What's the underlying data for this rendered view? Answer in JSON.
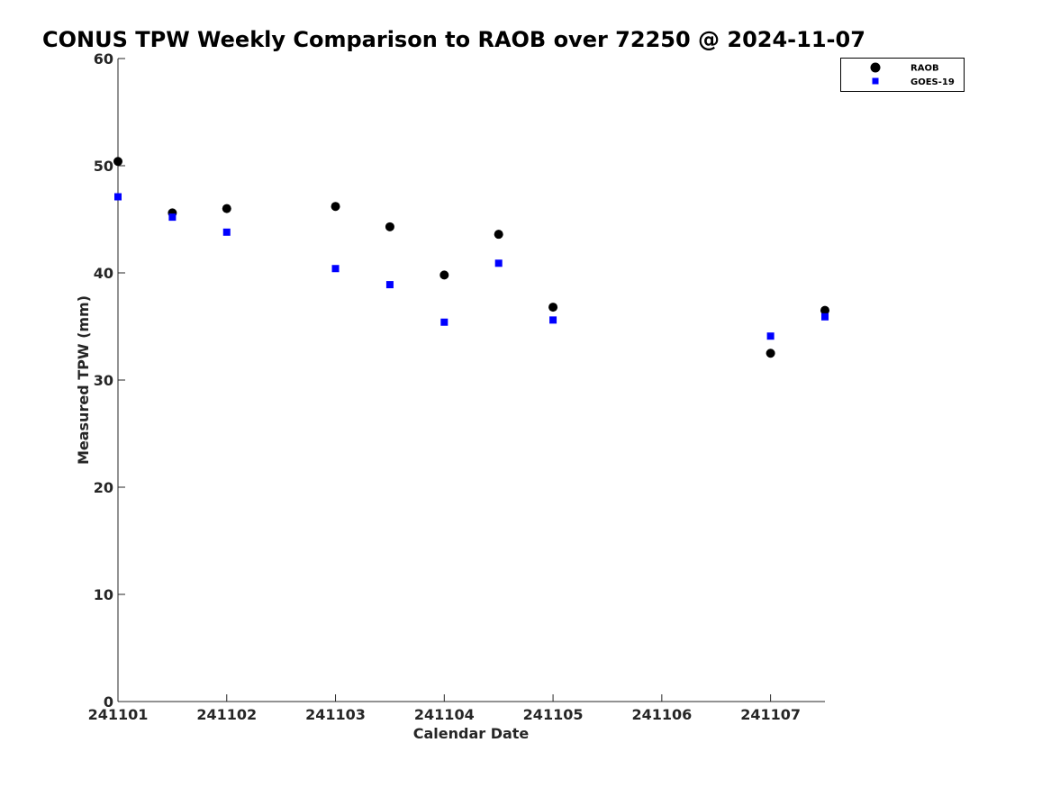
{
  "chart_data": {
    "type": "scatter",
    "title": "CONUS TPW Weekly Comparison to RAOB over 72250 @ 2024-11-07",
    "xlabel": "Calendar Date",
    "ylabel": "Measured TPW (mm)",
    "x_tick_labels": [
      "241101",
      "241102",
      "241103",
      "241104",
      "241105",
      "241106",
      "241107"
    ],
    "y_tick_labels": [
      "0",
      "10",
      "20",
      "30",
      "40",
      "50",
      "60"
    ],
    "y_ticks": [
      0,
      10,
      20,
      30,
      40,
      50,
      60
    ],
    "ylim": [
      0,
      60
    ],
    "xlim": [
      "2024-11-01",
      "2024-11-07T12:00"
    ],
    "grid": false,
    "legend_position": "top-right",
    "series": [
      {
        "name": "RAOB",
        "marker": "circle",
        "color": "#000000",
        "points": [
          {
            "x": "2024-11-01T00:00",
            "y": 50.4
          },
          {
            "x": "2024-11-01T12:00",
            "y": 45.6
          },
          {
            "x": "2024-11-02T00:00",
            "y": 46.0
          },
          {
            "x": "2024-11-03T00:00",
            "y": 46.2
          },
          {
            "x": "2024-11-03T12:00",
            "y": 44.3
          },
          {
            "x": "2024-11-04T00:00",
            "y": 39.8
          },
          {
            "x": "2024-11-04T12:00",
            "y": 43.6
          },
          {
            "x": "2024-11-05T00:00",
            "y": 36.8
          },
          {
            "x": "2024-11-07T00:00",
            "y": 32.5
          },
          {
            "x": "2024-11-07T12:00",
            "y": 36.5
          }
        ]
      },
      {
        "name": "GOES-19",
        "marker": "square",
        "color": "#0000ff",
        "points": [
          {
            "x": "2024-11-01T00:00",
            "y": 47.1
          },
          {
            "x": "2024-11-01T12:00",
            "y": 45.2
          },
          {
            "x": "2024-11-02T00:00",
            "y": 43.8
          },
          {
            "x": "2024-11-03T00:00",
            "y": 40.4
          },
          {
            "x": "2024-11-03T12:00",
            "y": 38.9
          },
          {
            "x": "2024-11-04T00:00",
            "y": 35.4
          },
          {
            "x": "2024-11-04T12:00",
            "y": 40.9
          },
          {
            "x": "2024-11-05T00:00",
            "y": 35.6
          },
          {
            "x": "2024-11-07T00:00",
            "y": 34.1
          },
          {
            "x": "2024-11-07T12:00",
            "y": 35.9
          }
        ]
      }
    ]
  }
}
